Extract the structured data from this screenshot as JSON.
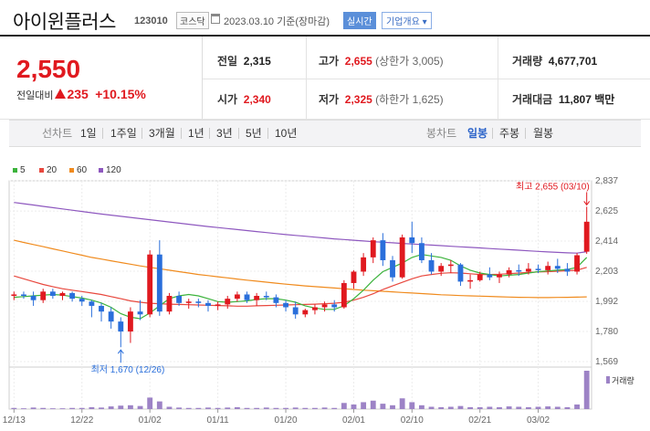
{
  "header": {
    "title": "아이윈플러스",
    "code": "123010",
    "market": "코스닥",
    "date": "2023.03.10 기준(장마감)",
    "badge_realtime": "실시간",
    "badge_company": "기업개요 ▾"
  },
  "price": {
    "current": "2,550",
    "change_label": "전일대비",
    "change": "235",
    "change_pct": "+10.15%"
  },
  "info": {
    "prev_label": "전일",
    "prev": "2,315",
    "high_label": "고가",
    "high": "2,655",
    "upper_limit": "(상한가 3,005)",
    "volume_label": "거래량",
    "volume": "4,677,701",
    "open_label": "시가",
    "open": "2,340",
    "low_label": "저가",
    "low": "2,325",
    "lower_limit": "(하한가 1,625)",
    "amount_label": "거래대금",
    "amount": "11,807 백만"
  },
  "toolbar": {
    "line_label": "선차트",
    "periods": [
      "1일",
      "1주일",
      "3개월",
      "1년",
      "3년",
      "5년",
      "10년"
    ],
    "candle_label": "봉차트",
    "candle_types": [
      "일봉",
      "주봉",
      "월봉"
    ],
    "candle_selected": "일봉"
  },
  "chart_data": {
    "type": "candlestick",
    "legend": [
      {
        "name": "5",
        "color": "#3cb33c"
      },
      {
        "name": "20",
        "color": "#e8483e"
      },
      {
        "name": "60",
        "color": "#f08b1e"
      },
      {
        "name": "120",
        "color": "#8e58bf"
      }
    ],
    "y_ticks": [
      2837,
      2625,
      2414,
      2203,
      1992,
      1780,
      1569
    ],
    "ylim": [
      1569,
      2837
    ],
    "x_ticks": [
      "12/13",
      "12/22",
      "01/02",
      "01/11",
      "01/20",
      "02/01",
      "02/10",
      "02/21",
      "03/02"
    ],
    "x_tick_index": [
      0,
      7,
      14,
      21,
      28,
      35,
      41,
      48,
      54
    ],
    "candles": [
      [
        2030,
        2060,
        2000,
        2040
      ],
      [
        2040,
        2060,
        2010,
        2030
      ],
      [
        2030,
        2060,
        1960,
        2000
      ],
      [
        2000,
        2080,
        1980,
        2060
      ],
      [
        2060,
        2080,
        2010,
        2030
      ],
      [
        2030,
        2060,
        2000,
        2050
      ],
      [
        2050,
        2060,
        1990,
        2010
      ],
      [
        2010,
        2030,
        1960,
        1990
      ],
      [
        1990,
        2000,
        1880,
        1960
      ],
      [
        1960,
        1980,
        1850,
        1920
      ],
      [
        1920,
        1950,
        1800,
        1850
      ],
      [
        1850,
        1880,
        1670,
        1780
      ],
      [
        1780,
        1950,
        1700,
        1920
      ],
      [
        1920,
        2000,
        1860,
        1900
      ],
      [
        1900,
        2350,
        1880,
        2320
      ],
      [
        2320,
        2420,
        1890,
        1920
      ],
      [
        1920,
        2050,
        1900,
        2030
      ],
      [
        2030,
        2060,
        1960,
        1980
      ],
      [
        1980,
        2010,
        1940,
        1990
      ],
      [
        1990,
        2010,
        1950,
        1980
      ],
      [
        1980,
        2000,
        1920,
        1960
      ],
      [
        1960,
        1990,
        1930,
        1970
      ],
      [
        1970,
        2030,
        1940,
        2010
      ],
      [
        2010,
        2060,
        1990,
        2040
      ],
      [
        2040,
        2060,
        1980,
        2000
      ],
      [
        2000,
        2050,
        1960,
        2030
      ],
      [
        2030,
        2060,
        2000,
        2020
      ],
      [
        2020,
        2040,
        1950,
        1980
      ],
      [
        1980,
        2000,
        1920,
        1950
      ],
      [
        1950,
        1990,
        1870,
        1900
      ],
      [
        1900,
        1940,
        1880,
        1930
      ],
      [
        1930,
        1970,
        1900,
        1950
      ],
      [
        1950,
        1990,
        1920,
        1970
      ],
      [
        1970,
        2000,
        1920,
        1950
      ],
      [
        1950,
        2140,
        1940,
        2120
      ],
      [
        2120,
        2210,
        2080,
        2200
      ],
      [
        2200,
        2330,
        2170,
        2300
      ],
      [
        2300,
        2440,
        2260,
        2420
      ],
      [
        2420,
        2470,
        2240,
        2280
      ],
      [
        2280,
        2310,
        2130,
        2160
      ],
      [
        2160,
        2460,
        2150,
        2440
      ],
      [
        2440,
        2550,
        2330,
        2400
      ],
      [
        2400,
        2440,
        2260,
        2280
      ],
      [
        2280,
        2330,
        2180,
        2200
      ],
      [
        2200,
        2260,
        2170,
        2240
      ],
      [
        2240,
        2280,
        2190,
        2250
      ],
      [
        2250,
        2260,
        2100,
        2130
      ],
      [
        2130,
        2180,
        2080,
        2140
      ],
      [
        2140,
        2200,
        2130,
        2180
      ],
      [
        2180,
        2230,
        2140,
        2160
      ],
      [
        2160,
        2200,
        2120,
        2180
      ],
      [
        2180,
        2230,
        2160,
        2210
      ],
      [
        2210,
        2250,
        2170,
        2200
      ],
      [
        2200,
        2260,
        2180,
        2220
      ],
      [
        2220,
        2250,
        2190,
        2210
      ],
      [
        2210,
        2270,
        2180,
        2240
      ],
      [
        2240,
        2290,
        2190,
        2220
      ],
      [
        2220,
        2260,
        2170,
        2200
      ],
      [
        2200,
        2330,
        2180,
        2315
      ],
      [
        2340,
        2655,
        2325,
        2550
      ]
    ],
    "ma5": [
      2020,
      2025,
      2030,
      2035,
      2040,
      2035,
      2025,
      2015,
      2000,
      1980,
      1950,
      1905,
      1880,
      1870,
      1910,
      1960,
      2010,
      2030,
      2040,
      2030,
      2010,
      1990,
      1985,
      1990,
      1995,
      2005,
      2010,
      2010,
      2000,
      1985,
      1960,
      1945,
      1935,
      1935,
      1960,
      2010,
      2070,
      2140,
      2200,
      2230,
      2260,
      2300,
      2320,
      2310,
      2300,
      2280,
      2240,
      2210,
      2190,
      2180,
      2170,
      2175,
      2180,
      2190,
      2200,
      2205,
      2210,
      2215,
      2230,
      2300
    ],
    "ma20": [
      2170,
      2150,
      2130,
      2110,
      2095,
      2080,
      2070,
      2060,
      2050,
      2040,
      2025,
      2010,
      1995,
      1985,
      1978,
      1975,
      1972,
      1970,
      1968,
      1966,
      1964,
      1962,
      1960,
      1958,
      1958,
      1960,
      1962,
      1964,
      1966,
      1968,
      1970,
      1972,
      1975,
      1978,
      1985,
      2000,
      2020,
      2045,
      2075,
      2100,
      2125,
      2150,
      2170,
      2180,
      2188,
      2192,
      2190,
      2185,
      2180,
      2180,
      2182,
      2186,
      2190,
      2194,
      2198,
      2200,
      2203,
      2206,
      2210,
      2230
    ],
    "ma60": [
      2420,
      2405,
      2390,
      2375,
      2360,
      2345,
      2330,
      2315,
      2300,
      2288,
      2276,
      2264,
      2252,
      2240,
      2230,
      2220,
      2210,
      2200,
      2190,
      2180,
      2172,
      2164,
      2156,
      2148,
      2140,
      2133,
      2126,
      2119,
      2112,
      2106,
      2100,
      2095,
      2090,
      2085,
      2080,
      2075,
      2070,
      2066,
      2062,
      2058,
      2054,
      2050,
      2046,
      2042,
      2038,
      2035,
      2032,
      2030,
      2028,
      2026,
      2024,
      2022,
      2020,
      2019,
      2018,
      2018,
      2019,
      2020,
      2021,
      2023
    ],
    "ma120": [
      2685,
      2676,
      2667,
      2658,
      2649,
      2640,
      2631,
      2622,
      2613,
      2604,
      2596,
      2588,
      2580,
      2572,
      2564,
      2556,
      2548,
      2540,
      2532,
      2524,
      2516,
      2509,
      2502,
      2495,
      2488,
      2481,
      2474,
      2467,
      2460,
      2454,
      2448,
      2442,
      2436,
      2430,
      2425,
      2420,
      2415,
      2410,
      2406,
      2402,
      2398,
      2394,
      2390,
      2386,
      2382,
      2378,
      2374,
      2370,
      2366,
      2362,
      2358,
      2354,
      2350,
      2346,
      2342,
      2338,
      2335,
      2332,
      2330,
      2340
    ],
    "volume": [
      3,
      2,
      4,
      3,
      2,
      2,
      3,
      3,
      5,
      4,
      7,
      9,
      10,
      8,
      30,
      20,
      6,
      4,
      3,
      3,
      4,
      3,
      4,
      5,
      3,
      3,
      4,
      3,
      3,
      4,
      3,
      3,
      4,
      3,
      16,
      12,
      18,
      22,
      14,
      10,
      28,
      18,
      10,
      6,
      5,
      6,
      8,
      5,
      5,
      6,
      5,
      7,
      6,
      5,
      6,
      7,
      6,
      5,
      12,
      100
    ],
    "high_annotation": "최고 2,655 (03/10)",
    "low_annotation": "최저 1,670 (12/26)",
    "volume_label": "거래량",
    "up_color": "#e0191f",
    "down_color": "#2a6fdb"
  }
}
